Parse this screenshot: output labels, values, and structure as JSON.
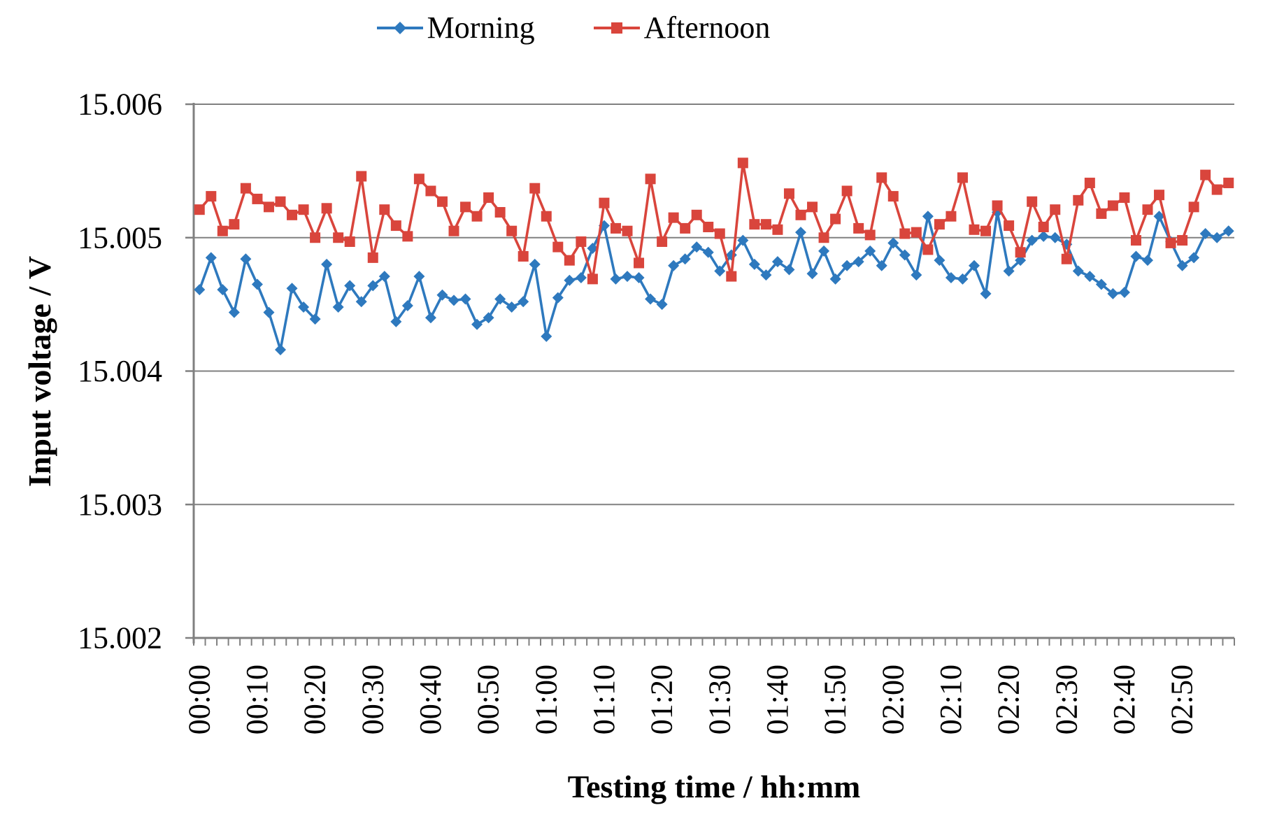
{
  "legend": {
    "morning_label": "Morning",
    "afternoon_label": "Afternoon"
  },
  "chart_data": {
    "type": "line",
    "title": "",
    "xlabel": "Testing time / hh:mm",
    "ylabel": "Input voltage / V",
    "ylim": [
      15.002,
      15.006
    ],
    "y_tick_labels": [
      "15.002",
      "15.003",
      "15.004",
      "15.005",
      "15.006"
    ],
    "x_tick_labels": [
      "00:00",
      "00:10",
      "00:20",
      "00:30",
      "00:40",
      "00:50",
      "01:00",
      "01:10",
      "01:20",
      "01:30",
      "01:40",
      "01:50",
      "02:00",
      "02:10",
      "02:20",
      "02:30",
      "02:40",
      "02:50"
    ],
    "x_label_every_n_points": 5,
    "x_time_start": "00:00",
    "x_time_step_minutes": 2,
    "n_points": 90,
    "grid": "horizontal-only",
    "legend_position": "top-center",
    "colors": {
      "morning": "#2E79BE",
      "afternoon": "#D9453C",
      "axis": "#808080",
      "gridline": "#808080",
      "text": "#000000"
    },
    "series": [
      {
        "name": "Morning",
        "marker": "diamond",
        "color": "#2E79BE",
        "values": [
          15.00461,
          15.00485,
          15.00461,
          15.00444,
          15.00484,
          15.00465,
          15.00444,
          15.00416,
          15.00462,
          15.00448,
          15.00439,
          15.0048,
          15.00448,
          15.00464,
          15.00452,
          15.00464,
          15.00471,
          15.00437,
          15.00449,
          15.00471,
          15.0044,
          15.00457,
          15.00453,
          15.00454,
          15.00435,
          15.0044,
          15.00454,
          15.00448,
          15.00452,
          15.0048,
          15.00426,
          15.00455,
          15.00468,
          15.0047,
          15.00492,
          15.00509,
          15.00469,
          15.00471,
          15.0047,
          15.00454,
          15.0045,
          15.00479,
          15.00484,
          15.00493,
          15.00489,
          15.00475,
          15.00487,
          15.00498,
          15.0048,
          15.00472,
          15.00482,
          15.00476,
          15.00504,
          15.00473,
          15.0049,
          15.00469,
          15.00479,
          15.00482,
          15.0049,
          15.00479,
          15.00496,
          15.00487,
          15.00472,
          15.00516,
          15.00483,
          15.0047,
          15.00469,
          15.00479,
          15.00458,
          15.00519,
          15.00475,
          15.00483,
          15.00498,
          15.00501,
          15.005,
          15.00495,
          15.00475,
          15.00471,
          15.00465,
          15.00458,
          15.00459,
          15.00486,
          15.00483,
          15.00516,
          15.00497,
          15.00479,
          15.00485,
          15.00503,
          15.005,
          15.00505
        ]
      },
      {
        "name": "Afternoon",
        "marker": "square",
        "color": "#D9453C",
        "values": [
          15.00521,
          15.00531,
          15.00505,
          15.0051,
          15.00537,
          15.00529,
          15.00523,
          15.00527,
          15.00517,
          15.00521,
          15.005,
          15.00522,
          15.005,
          15.00497,
          15.00546,
          15.00485,
          15.00521,
          15.00509,
          15.00501,
          15.00544,
          15.00535,
          15.00527,
          15.00505,
          15.00523,
          15.00516,
          15.0053,
          15.00519,
          15.00505,
          15.00486,
          15.00537,
          15.00516,
          15.00493,
          15.00483,
          15.00497,
          15.00469,
          15.00526,
          15.00507,
          15.00505,
          15.00481,
          15.00544,
          15.00497,
          15.00515,
          15.00507,
          15.00517,
          15.00508,
          15.00503,
          15.00471,
          15.00556,
          15.0051,
          15.0051,
          15.00506,
          15.00533,
          15.00517,
          15.00523,
          15.005,
          15.00514,
          15.00535,
          15.00507,
          15.00502,
          15.00545,
          15.00531,
          15.00503,
          15.00504,
          15.00491,
          15.0051,
          15.00516,
          15.00545,
          15.00506,
          15.00505,
          15.00524,
          15.00509,
          15.00489,
          15.00527,
          15.00508,
          15.00521,
          15.00484,
          15.00528,
          15.00541,
          15.00518,
          15.00524,
          15.0053,
          15.00498,
          15.00521,
          15.00532,
          15.00496,
          15.00498,
          15.00523,
          15.00547,
          15.00536,
          15.00541
        ]
      }
    ]
  }
}
